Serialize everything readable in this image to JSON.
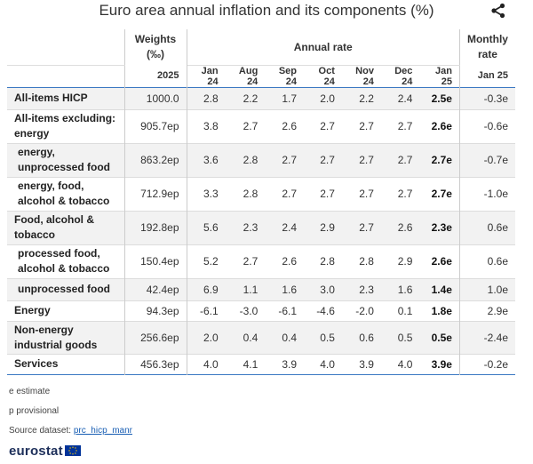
{
  "title": "Euro area annual inflation and its components (%)",
  "share_icon": "share-icon",
  "header": {
    "weights_label": "Weights (‰)",
    "weights_line1": "Weights",
    "weights_line2": "(‰)",
    "annual_rate_label": "Annual rate",
    "monthly_line1": "Monthly",
    "monthly_line2": "rate",
    "weights_year": "2025",
    "periods": [
      "Jan 24",
      "Aug 24",
      "Sep 24",
      "Oct 24",
      "Nov 24",
      "Dec 24",
      "Jan 25"
    ],
    "monthly_period": "Jan 25"
  },
  "rows": [
    {
      "label": "All-items HICP",
      "weight": "1000.0",
      "values": [
        "2.8",
        "2.2",
        "1.7",
        "2.0",
        "2.2",
        "2.4",
        "2.5e"
      ],
      "monthly": "-0.3e",
      "indent": false
    },
    {
      "label": "All-items excluding: energy",
      "weight": "905.7ep",
      "values": [
        "3.8",
        "2.7",
        "2.6",
        "2.7",
        "2.7",
        "2.7",
        "2.6e"
      ],
      "monthly": "-0.6e",
      "indent": false
    },
    {
      "label": "energy, unprocessed food",
      "weight": "863.2ep",
      "values": [
        "3.6",
        "2.8",
        "2.7",
        "2.7",
        "2.7",
        "2.7",
        "2.7e"
      ],
      "monthly": "-0.7e",
      "indent": true
    },
    {
      "label": "energy, food, alcohol & tobacco",
      "weight": "712.9ep",
      "values": [
        "3.3",
        "2.8",
        "2.7",
        "2.7",
        "2.7",
        "2.7",
        "2.7e"
      ],
      "monthly": "-1.0e",
      "indent": true
    },
    {
      "label": "Food, alcohol & tobacco",
      "weight": "192.8ep",
      "values": [
        "5.6",
        "2.3",
        "2.4",
        "2.9",
        "2.7",
        "2.6",
        "2.3e"
      ],
      "monthly": "0.6e",
      "indent": false
    },
    {
      "label": "processed food, alcohol & tobacco",
      "weight": "150.4ep",
      "values": [
        "5.2",
        "2.7",
        "2.6",
        "2.8",
        "2.8",
        "2.9",
        "2.6e"
      ],
      "monthly": "0.6e",
      "indent": true
    },
    {
      "label": "unprocessed food",
      "weight": "42.4ep",
      "values": [
        "6.9",
        "1.1",
        "1.6",
        "3.0",
        "2.3",
        "1.6",
        "1.4e"
      ],
      "monthly": "1.0e",
      "indent": true
    },
    {
      "label": "Energy",
      "weight": "94.3ep",
      "values": [
        "-6.1",
        "-3.0",
        "-6.1",
        "-4.6",
        "-2.0",
        "0.1",
        "1.8e"
      ],
      "monthly": "2.9e",
      "indent": false
    },
    {
      "label": "Non-energy industrial goods",
      "weight": "256.6ep",
      "values": [
        "2.0",
        "0.4",
        "0.4",
        "0.5",
        "0.6",
        "0.5",
        "0.5e"
      ],
      "monthly": "-2.4e",
      "indent": false
    },
    {
      "label": "Services",
      "weight": "456.3ep",
      "values": [
        "4.0",
        "4.1",
        "3.9",
        "4.0",
        "3.9",
        "4.0",
        "3.9e"
      ],
      "monthly": "-0.2e",
      "indent": false
    }
  ],
  "notes": {
    "estimate": "e estimate",
    "provisional": "p provisional",
    "source_label": "Source dataset:",
    "source_link": "prc_hicp_manr"
  },
  "logo": {
    "text": "eurostat",
    "flag_icon": "eu-flag-icon"
  },
  "colors": {
    "accent_border": "#3a77c2",
    "shade": "#f2f2f2",
    "link": "#1a5fb4",
    "logo_text": "#1d2f5a",
    "flag_blue": "#003399",
    "flag_star": "#ffcc00"
  }
}
